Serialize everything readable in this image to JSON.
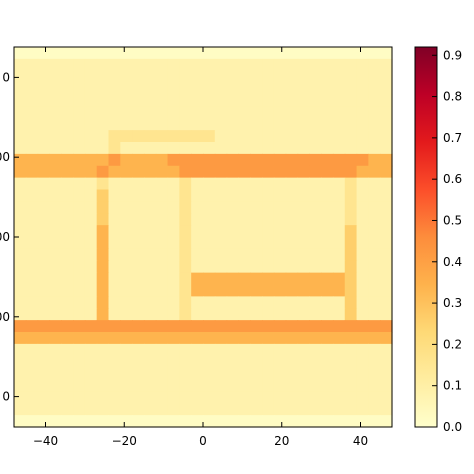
{
  "chart_data": {
    "type": "heatmap",
    "title": "",
    "xlabel": "",
    "ylabel": "",
    "colormap": "YlOrRd",
    "x_ticks": [
      -40,
      -20,
      0,
      20,
      40
    ],
    "x_tick_labels": [
      "−40",
      "−20",
      "0",
      "20",
      "40"
    ],
    "y_tick_labels_visible": [
      "0",
      "00",
      "00",
      "00",
      "0"
    ],
    "xlim": [
      -48,
      48
    ],
    "grid": false,
    "colorbar": {
      "min": 0.0,
      "max": 0.92,
      "ticks": [
        0.0,
        0.1,
        0.2,
        0.3,
        0.4,
        0.5,
        0.6,
        0.7,
        0.8,
        0.9
      ],
      "tick_labels": [
        "0.0",
        "0.1",
        "0.2",
        "0.3",
        "0.4",
        "0.5",
        "0.6",
        "0.7",
        "0.8",
        "0.9"
      ]
    },
    "grid_size": [
      32,
      32
    ],
    "values_rows_top_to_bottom": [
      "00000000000000000000000000000000",
      "11111111111111111111111111111111",
      "11111111111111111111111111111111",
      "11111111111111111111111111111111",
      "11111111111111111111111111111111",
      "11111111111111111111111111111111",
      "11111111111111111111111111111111",
      "11111111222222222111111111111111",
      "11111111211111111111111111111111",
      "44444444544445555555555555555544",
      "44444445444444555555555555555444",
      "11111112111111211111111111112111",
      "11111113111111211111111111112111",
      "11111113111111211111111111112111",
      "11111113111111211111111111112111",
      "11111114111111211111111111113111",
      "11111114111111211111111111113111",
      "11111114111111211111111111113111",
      "11111114111111211111111111113111",
      "11111114111111244444444444443111",
      "11111114111111244444444444443111",
      "11111114111111211111111111113111",
      "11111114111111211111111111113111",
      "55555555555555555555555555555555",
      "44444444444444444444444444444444",
      "11111111111111111111111111111111",
      "11111111111111111111111111111111",
      "11111111111111111111111111111111",
      "11111111111111111111111111111111",
      "11111111111111111111111111111111",
      "11111111111111111111111111111111",
      "00000000000000000000000000000000"
    ],
    "value_levels": [
      0.02,
      0.08,
      0.16,
      0.26,
      0.34,
      0.42
    ]
  }
}
